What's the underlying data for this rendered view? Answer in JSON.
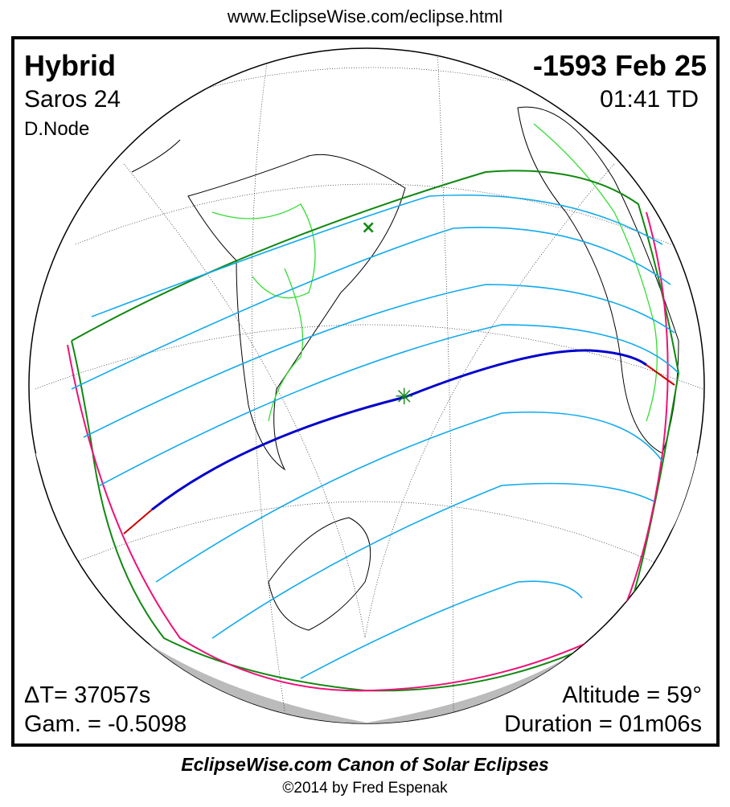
{
  "header_url": "www.EclipseWise.com/eclipse.html",
  "eclipse": {
    "type": "Hybrid",
    "date": "-1593 Feb 25",
    "saros": "Saros  24",
    "time": "01:41 TD",
    "node": "D.Node",
    "delta_t": "ΔT=  37057s",
    "gamma": "Gam. = -0.5098",
    "altitude": "Altitude = 59°",
    "duration": "Duration = 01m06s"
  },
  "footer": {
    "canon": "EclipseWise.com Canon of Solar Eclipses",
    "copyright": "©2014 by Fred Espenak"
  },
  "colors": {
    "land_borders": "#33dd33",
    "penumbra_limits": "#118811",
    "partial_lines": "#11aaee",
    "central_path_annular": "#0000cc",
    "central_path_total": "#cc0000",
    "rise_set_curve": "#ee1177",
    "night_shade": "#bbbbbb"
  }
}
